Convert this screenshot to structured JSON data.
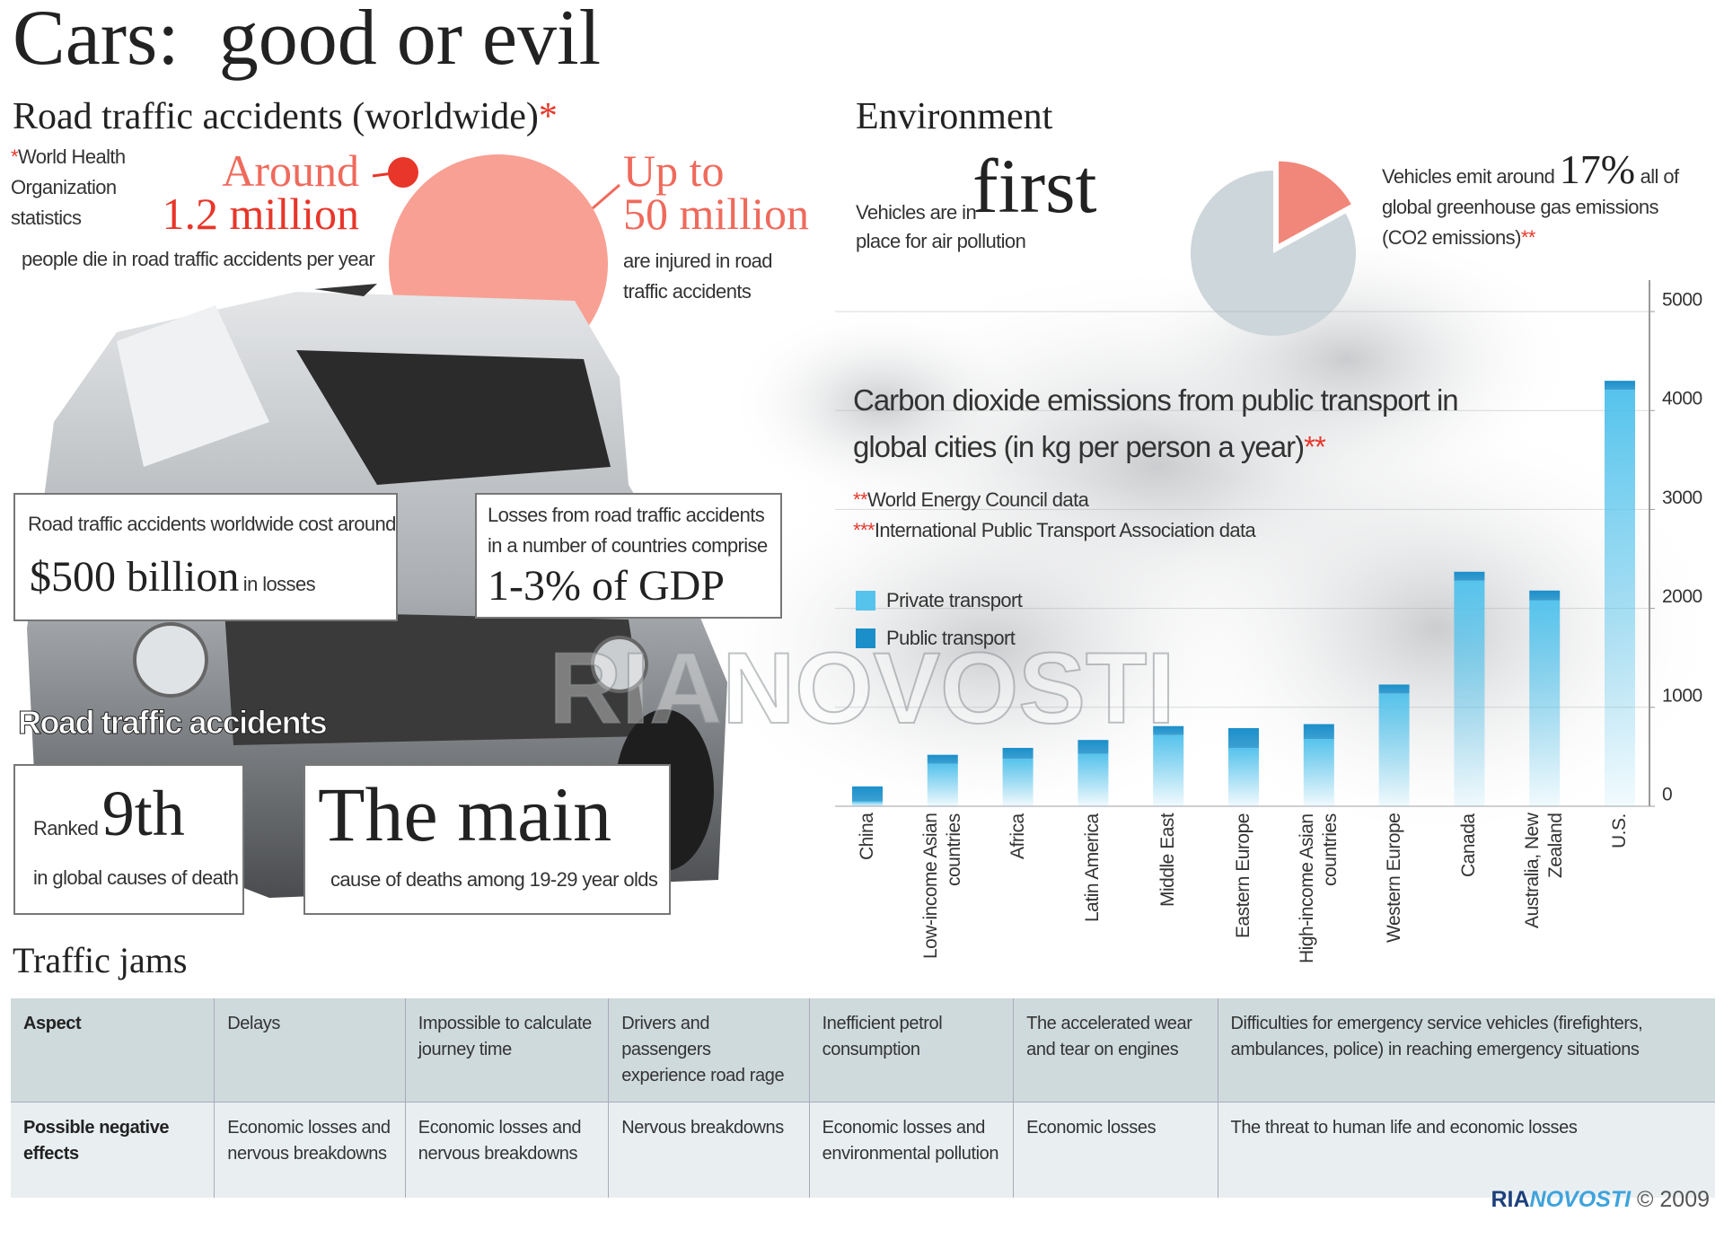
{
  "header": {
    "title": "Cars:  good or evil"
  },
  "accidents": {
    "title": "Road traffic accidents (worldwide)",
    "title_note": "*",
    "source_note": "*",
    "source": "World Health Organization statistics",
    "deaths_lead": "Around",
    "deaths_number": "1.2 million",
    "deaths_text": "people die in road traffic accidents per year",
    "injuries_lead": "Up to",
    "injuries_number": "50 million",
    "injuries_text": "are injured in road traffic accidents",
    "cost_text": "Road traffic accidents worldwide cost around",
    "cost_number": "$500 billion",
    "cost_suffix": "in losses",
    "gdp_text": "Losses from road traffic accidents in a number of countries comprise",
    "gdp_number": "1-3% of GDP",
    "rank_label": "Road traffic accidents",
    "rank_lead": "Ranked",
    "rank_number": "9th",
    "rank_text": "in global causes of death",
    "main_big": "The main",
    "main_text": "cause of deaths among 19-29 year olds"
  },
  "environment": {
    "title": "Environment",
    "pollution_1": "Vehicles are in",
    "pollution_big": "first",
    "pollution_2": "place for air pollution",
    "emit_before": "Vehicles emit around",
    "emit_after": "all of global greenhouse gas emissions (CO2 emissions)",
    "emit_note": "**"
  },
  "chart_data": [
    {
      "type": "pie",
      "values": [
        17,
        83
      ],
      "value_labels": [
        "17%",
        null
      ],
      "colors": [
        "#f0877a",
        "#cdd6da"
      ]
    },
    {
      "type": "bar",
      "stacked": true,
      "title": "Carbon dioxide emissions from public transport in global cities (in kg per person a year)",
      "title_note": "**",
      "sources": [
        {
          "note": "**",
          "text": "World Energy Council data"
        },
        {
          "note": "***",
          "text": "International Public Transport Association data"
        }
      ],
      "categories": [
        "China",
        "Low-income Asian countries",
        "Africa",
        "Latin America",
        "Middle East",
        "Eastern Europe",
        "High-income Asian countries",
        "Western Europe",
        "Canada",
        "Australia, New Zealand",
        "U.S."
      ],
      "series": [
        {
          "name": "Private transport",
          "color": "#56c3ec",
          "values": [
            50,
            430,
            480,
            530,
            720,
            590,
            680,
            1140,
            2280,
            2080,
            4210
          ]
        },
        {
          "name": "Public transport",
          "color": "#1b8fca",
          "values": [
            150,
            90,
            110,
            140,
            90,
            200,
            150,
            90,
            90,
            100,
            90
          ]
        }
      ],
      "ylim": [
        0,
        5000
      ],
      "yticks": [
        0,
        1000,
        2000,
        3000,
        4000,
        5000
      ],
      "grid": true
    }
  ],
  "watermark": "RIANOVOSTI",
  "traffic": {
    "title": "Traffic jams",
    "rows": [
      [
        "Aspect",
        "Delays",
        "Impossible to calculate journey time",
        "Drivers and passengers experience road rage",
        "Inefficient petrol consumption",
        "The accelerated wear and tear on engines",
        "Difficulties for emergency service vehicles (firefighters, ambulances, police) in reaching emergency situations"
      ],
      [
        "Possible negative effects",
        "Economic losses and nervous breakdowns",
        "Economic losses and nervous breakdowns",
        "Nervous breakdowns",
        "Economic losses and environmental pollution",
        "Economic losses",
        "The threat to human life and economic losses"
      ]
    ]
  },
  "footer": {
    "brand_1": "RIA",
    "brand_2": "NOVOSTI",
    "copyright": "© 2009"
  }
}
